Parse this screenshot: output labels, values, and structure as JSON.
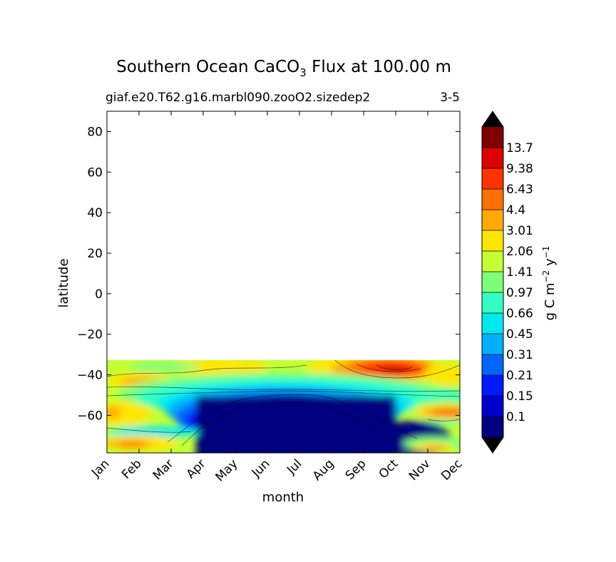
{
  "chart_data": {
    "type": "contour",
    "title": "Southern Ocean CaCO",
    "title_subscript": "3",
    "title_suffix": " Flux at 100.00 m",
    "subtitle_left": "giaf.e20.T62.g16.marbl090.zooO2.sizedep2",
    "subtitle_right": "3-5",
    "xlabel": "month",
    "ylabel": "latitude",
    "x_categories": [
      "Jan",
      "Feb",
      "Mar",
      "Apr",
      "May",
      "Jun",
      "Jul",
      "Aug",
      "Sep",
      "Oct",
      "Nov",
      "Dec"
    ],
    "y_ticks": [
      80,
      60,
      40,
      20,
      0,
      -20,
      -40,
      -60
    ],
    "y_tick_labels": [
      "80",
      "60",
      "40",
      "20",
      "0",
      "−20",
      "−40",
      "−60"
    ],
    "ylim": [
      -78.5,
      90
    ],
    "data_lat_max": -33,
    "colorbar": {
      "label_main": "g C m",
      "label_exp1": "−2",
      "label_mid": " y",
      "label_exp2": "−1",
      "levels": [
        "0.1",
        "0.15",
        "0.21",
        "0.31",
        "0.45",
        "0.66",
        "0.97",
        "1.41",
        "2.06",
        "3.01",
        "4.4",
        "6.43",
        "9.38",
        "13.7"
      ],
      "colors": [
        "#000080",
        "#0000cc",
        "#0019ff",
        "#0066ff",
        "#00b0ff",
        "#00e8f0",
        "#33ffc4",
        "#7dff7a",
        "#c4ff33",
        "#ffe600",
        "#ffaa00",
        "#ff7000",
        "#ff3300",
        "#df0000",
        "#800000"
      ],
      "under_color": "#000000",
      "over_color": "#000000"
    }
  }
}
